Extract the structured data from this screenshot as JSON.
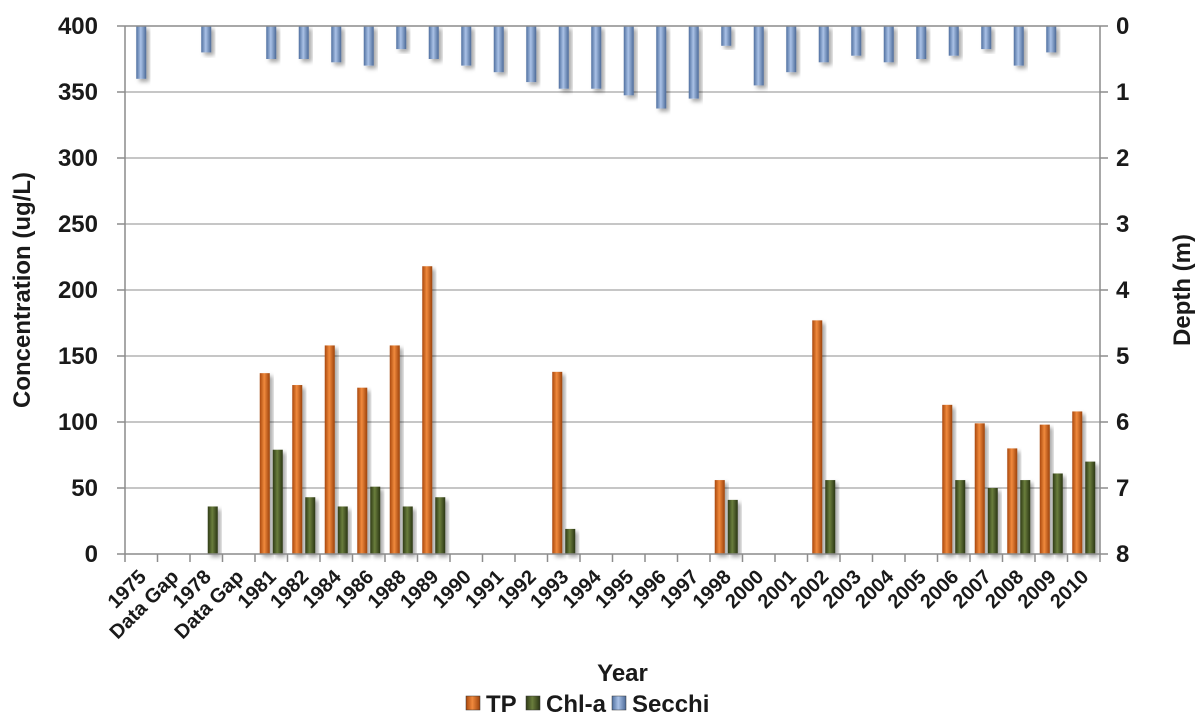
{
  "chart_data": {
    "type": "bar",
    "xlabel": "Year",
    "ylabel": "Concentration (ug/L)",
    "y2label": "Depth (m)",
    "ylim": [
      0,
      400
    ],
    "y2lim": [
      0,
      8
    ],
    "y2_inverted": true,
    "yticks": [
      0,
      50,
      100,
      150,
      200,
      250,
      300,
      350,
      400
    ],
    "y2ticks": [
      0,
      1,
      2,
      3,
      4,
      5,
      6,
      7,
      8
    ],
    "grid": true,
    "legend_position": "bottom",
    "categories": [
      "1975",
      "Data Gap",
      "1978",
      "Data Gap",
      "1981",
      "1982",
      "1984",
      "1986",
      "1988",
      "1989",
      "1990",
      "1991",
      "1992",
      "1993",
      "1994",
      "1995",
      "1996",
      "1997",
      "1998",
      "2000",
      "2001",
      "2002",
      "2003",
      "2004",
      "2005",
      "2006",
      "2007",
      "2008",
      "2009",
      "2010"
    ],
    "series": [
      {
        "name": "TP",
        "axis": "left",
        "color": "#d2691e",
        "values": [
          null,
          null,
          null,
          null,
          137,
          128,
          158,
          126,
          158,
          218,
          null,
          null,
          null,
          138,
          null,
          null,
          null,
          null,
          56,
          null,
          null,
          177,
          null,
          null,
          null,
          113,
          99,
          80,
          98,
          108
        ]
      },
      {
        "name": "Chl-a",
        "axis": "left",
        "color": "#4a5a2a",
        "values": [
          null,
          null,
          36,
          null,
          79,
          43,
          36,
          51,
          36,
          43,
          null,
          null,
          null,
          19,
          null,
          null,
          null,
          null,
          41,
          null,
          null,
          56,
          null,
          null,
          null,
          56,
          50,
          56,
          61,
          70
        ]
      },
      {
        "name": "Secchi",
        "axis": "right",
        "color": "#7e9fd0",
        "values": [
          0.8,
          null,
          0.4,
          null,
          0.5,
          0.5,
          0.55,
          0.6,
          0.35,
          0.5,
          0.6,
          0.7,
          0.85,
          0.95,
          0.95,
          1.05,
          1.25,
          1.1,
          0.3,
          0.9,
          0.7,
          0.55,
          0.45,
          0.55,
          0.5,
          0.45,
          0.35,
          0.6,
          0.4,
          null
        ]
      }
    ]
  }
}
